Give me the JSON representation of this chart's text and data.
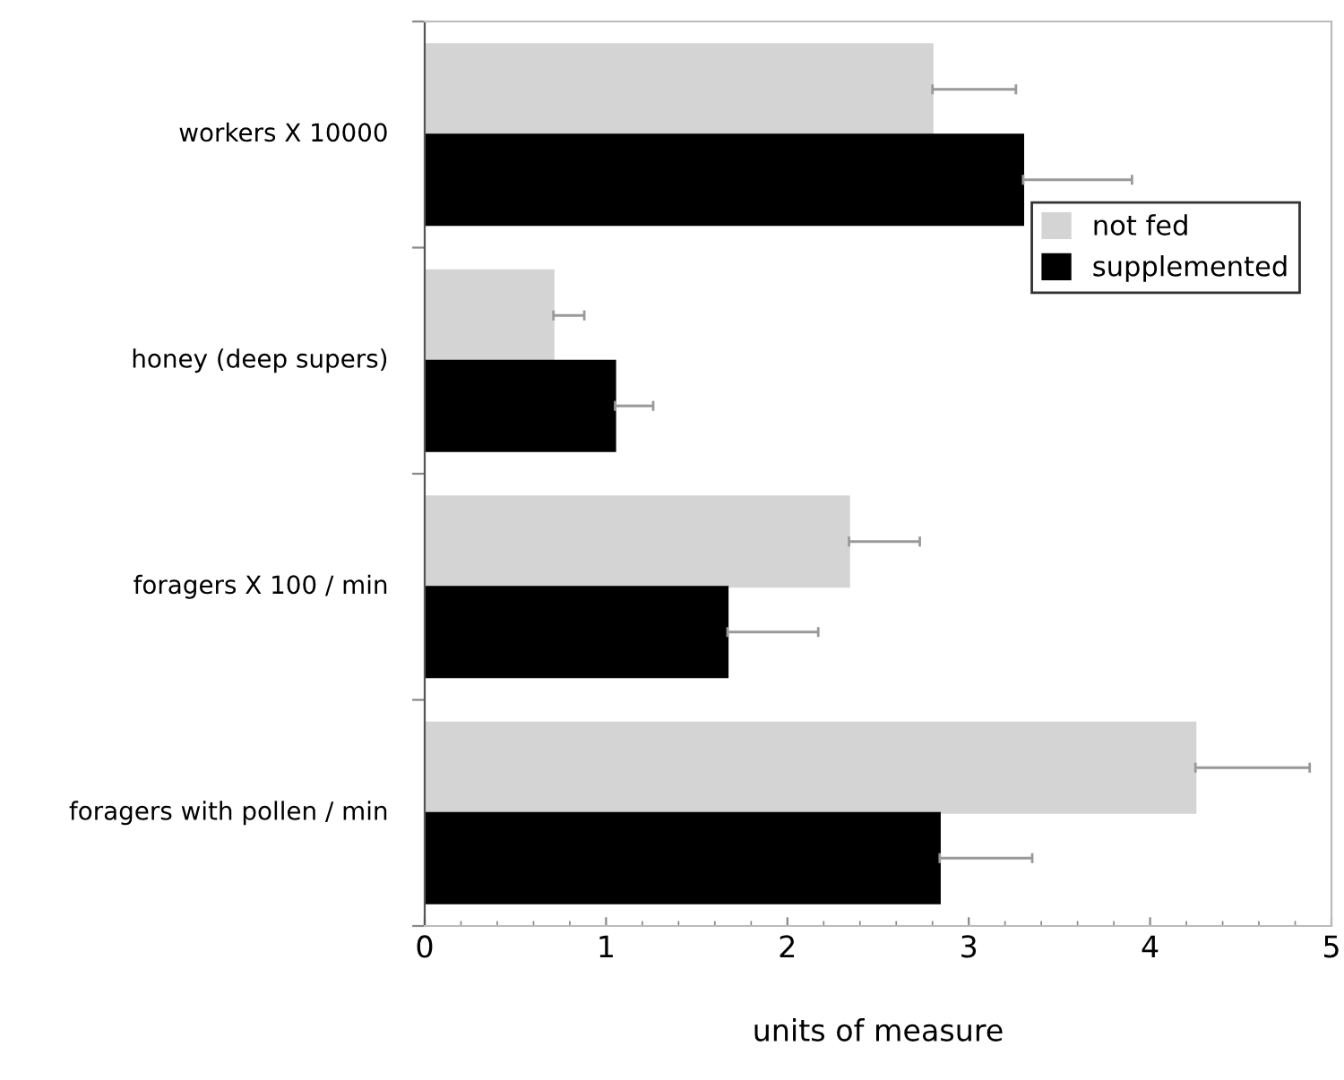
{
  "chart_data": {
    "type": "bar",
    "orientation": "horizontal",
    "xlabel": "units of measure",
    "categories": [
      "workers X 10000",
      "honey (deep supers)",
      "foragers X 100 / min",
      "foragers with pollen / min"
    ],
    "series": [
      {
        "name": "not fed",
        "color": "#d4d4d4",
        "values": [
          2.8,
          0.71,
          2.34,
          4.25
        ],
        "errors": [
          [
            2.8,
            3.26
          ],
          [
            0.71,
            0.88
          ],
          [
            2.34,
            2.73
          ],
          [
            4.25,
            4.88
          ]
        ]
      },
      {
        "name": "supplemented",
        "color": "#000000",
        "values": [
          3.3,
          1.05,
          1.67,
          2.84
        ],
        "errors": [
          [
            3.3,
            3.9
          ],
          [
            1.05,
            1.26
          ],
          [
            1.67,
            2.17
          ],
          [
            2.84,
            3.35
          ]
        ]
      }
    ],
    "xlim": [
      0,
      5
    ],
    "xticks": [
      0,
      1,
      2,
      3,
      4,
      5
    ],
    "grid": false,
    "legend": "right"
  }
}
